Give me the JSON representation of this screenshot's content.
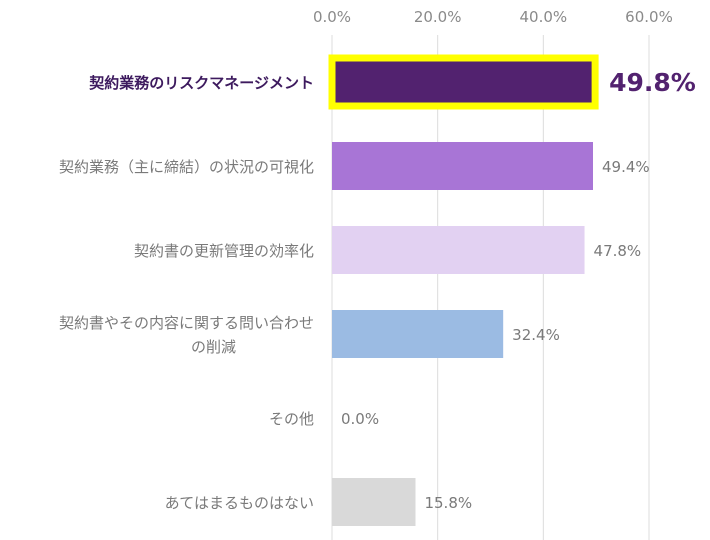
{
  "chart_data": {
    "type": "bar",
    "orientation": "horizontal",
    "categories": [
      [
        "契約業務のリスクマネージメント"
      ],
      [
        "契約業務（主に締結）の状況の可視化"
      ],
      [
        "契約書の更新管理の効率化"
      ],
      [
        "契約書やその内容に関する問い合わせ",
        "の削減"
      ],
      [
        "その他"
      ],
      [
        "あてはまるものはない"
      ]
    ],
    "values": [
      49.8,
      49.4,
      47.8,
      32.4,
      0.0,
      15.8
    ],
    "value_labels": [
      "49.8%",
      "49.4%",
      "47.8%",
      "32.4%",
      "0.0%",
      "15.8%"
    ],
    "bar_colors": [
      "#52226f",
      "#a875d6",
      "#e2d1f2",
      "#9bbbe3",
      "#cccccc",
      "#d9d9d9"
    ],
    "highlight_index": 0,
    "highlight_color": "#ffff00",
    "xlim": [
      0,
      60
    ],
    "x_ticks": [
      0,
      20,
      40,
      60
    ],
    "x_tick_labels": [
      "0.0%",
      "20.0%",
      "40.0%",
      "60.0%"
    ],
    "x_axis_position": "top",
    "grid": true,
    "legend": "none"
  }
}
